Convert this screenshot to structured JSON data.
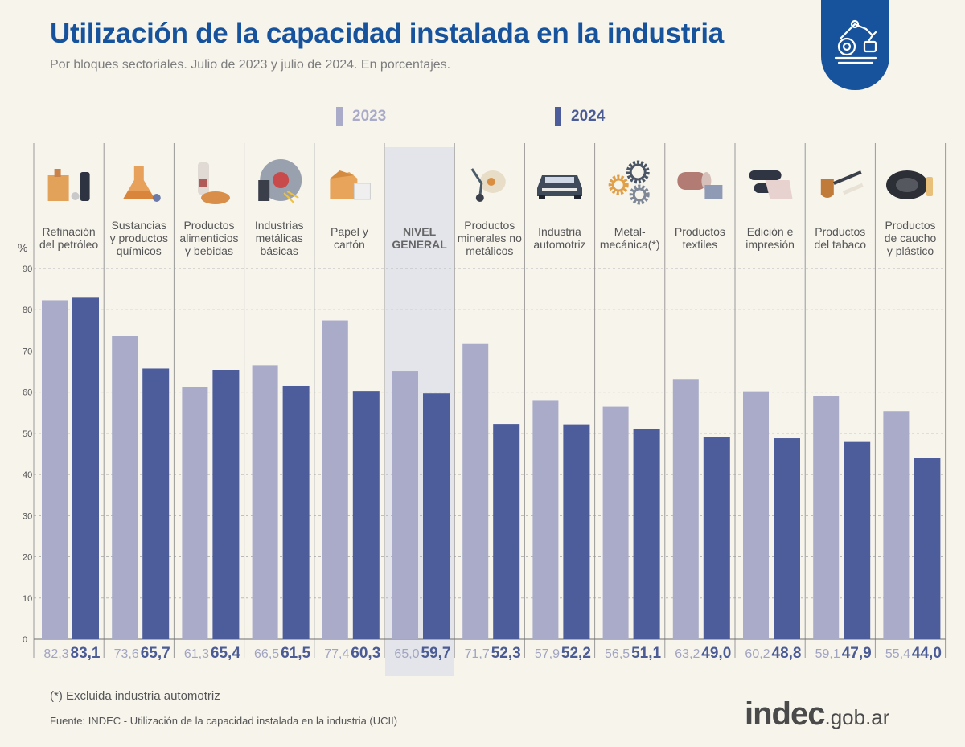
{
  "title": "Utilización de la capacidad instalada en la industria",
  "subtitle": "Por bloques sectoriales. Julio de 2023 y julio de 2024. En porcentajes.",
  "legend": {
    "y2023": "2023",
    "y2024": "2024"
  },
  "footnote": "(*) Excluida industria automotriz",
  "source": "Fuente: INDEC - Utilización de la capacidad instalada en la industria (UCII)",
  "logo": {
    "main": "indec",
    "suffix": ".gob.ar"
  },
  "colors": {
    "s2023": "#a9abc9",
    "s2024": "#4d5c9a",
    "title": "#17539c",
    "highlight": "#e4e5ea"
  },
  "chart_data": {
    "type": "bar",
    "ylabel": "%",
    "ylim": [
      0,
      90
    ],
    "yticks": [
      0,
      10,
      20,
      30,
      40,
      50,
      60,
      70,
      80,
      90
    ],
    "grid": true,
    "highlight_category": "NIVEL GENERAL",
    "categories": [
      {
        "lines": [
          "Refinación",
          "del petróleo"
        ],
        "icon": "oil-refinery-icon"
      },
      {
        "lines": [
          "Sustancias",
          "y productos",
          "químicos"
        ],
        "icon": "chemistry-flask-icon"
      },
      {
        "lines": [
          "Productos",
          "alimenticios",
          "y bebidas"
        ],
        "icon": "food-bottle-bread-icon"
      },
      {
        "lines": [
          "Industrias",
          "metálicas",
          "básicas"
        ],
        "icon": "metal-saw-icon"
      },
      {
        "lines": [
          "Papel y",
          "cartón"
        ],
        "icon": "cardboard-box-icon"
      },
      {
        "lines": [
          "NIVEL",
          "GENERAL"
        ],
        "icon": ""
      },
      {
        "lines": [
          "Productos",
          "minerales no",
          "metálicos"
        ],
        "icon": "cement-mixer-icon"
      },
      {
        "lines": [
          "Industria",
          "automotriz"
        ],
        "icon": "car-icon"
      },
      {
        "lines": [
          "Metal-",
          "mecánica(*)"
        ],
        "icon": "gears-icon"
      },
      {
        "lines": [
          "Productos",
          "textiles"
        ],
        "icon": "textile-fabric-icon"
      },
      {
        "lines": [
          "Edición e",
          "impresión"
        ],
        "icon": "printing-press-icon"
      },
      {
        "lines": [
          "Productos",
          "del tabaco"
        ],
        "icon": "tobacco-pipe-icon"
      },
      {
        "lines": [
          "Productos",
          "de caucho",
          "y plástico"
        ],
        "icon": "tire-icon"
      }
    ],
    "series": [
      {
        "name": "2023",
        "values": [
          82.3,
          73.6,
          61.3,
          66.5,
          77.4,
          65.0,
          71.7,
          57.9,
          56.5,
          63.2,
          60.2,
          59.1,
          55.4
        ],
        "labels": [
          "82,3",
          "73,6",
          "61,3",
          "66,5",
          "77,4",
          "65,0",
          "71,7",
          "57,9",
          "56,5",
          "63,2",
          "60,2",
          "59,1",
          "55,4"
        ]
      },
      {
        "name": "2024",
        "values": [
          83.1,
          65.7,
          65.4,
          61.5,
          60.3,
          59.7,
          52.3,
          52.2,
          51.1,
          49.0,
          48.8,
          47.9,
          44.0
        ],
        "labels": [
          "83,1",
          "65,7",
          "65,4",
          "61,5",
          "60,3",
          "59,7",
          "52,3",
          "52,2",
          "51,1",
          "49,0",
          "48,8",
          "47,9",
          "44,0"
        ]
      }
    ]
  }
}
